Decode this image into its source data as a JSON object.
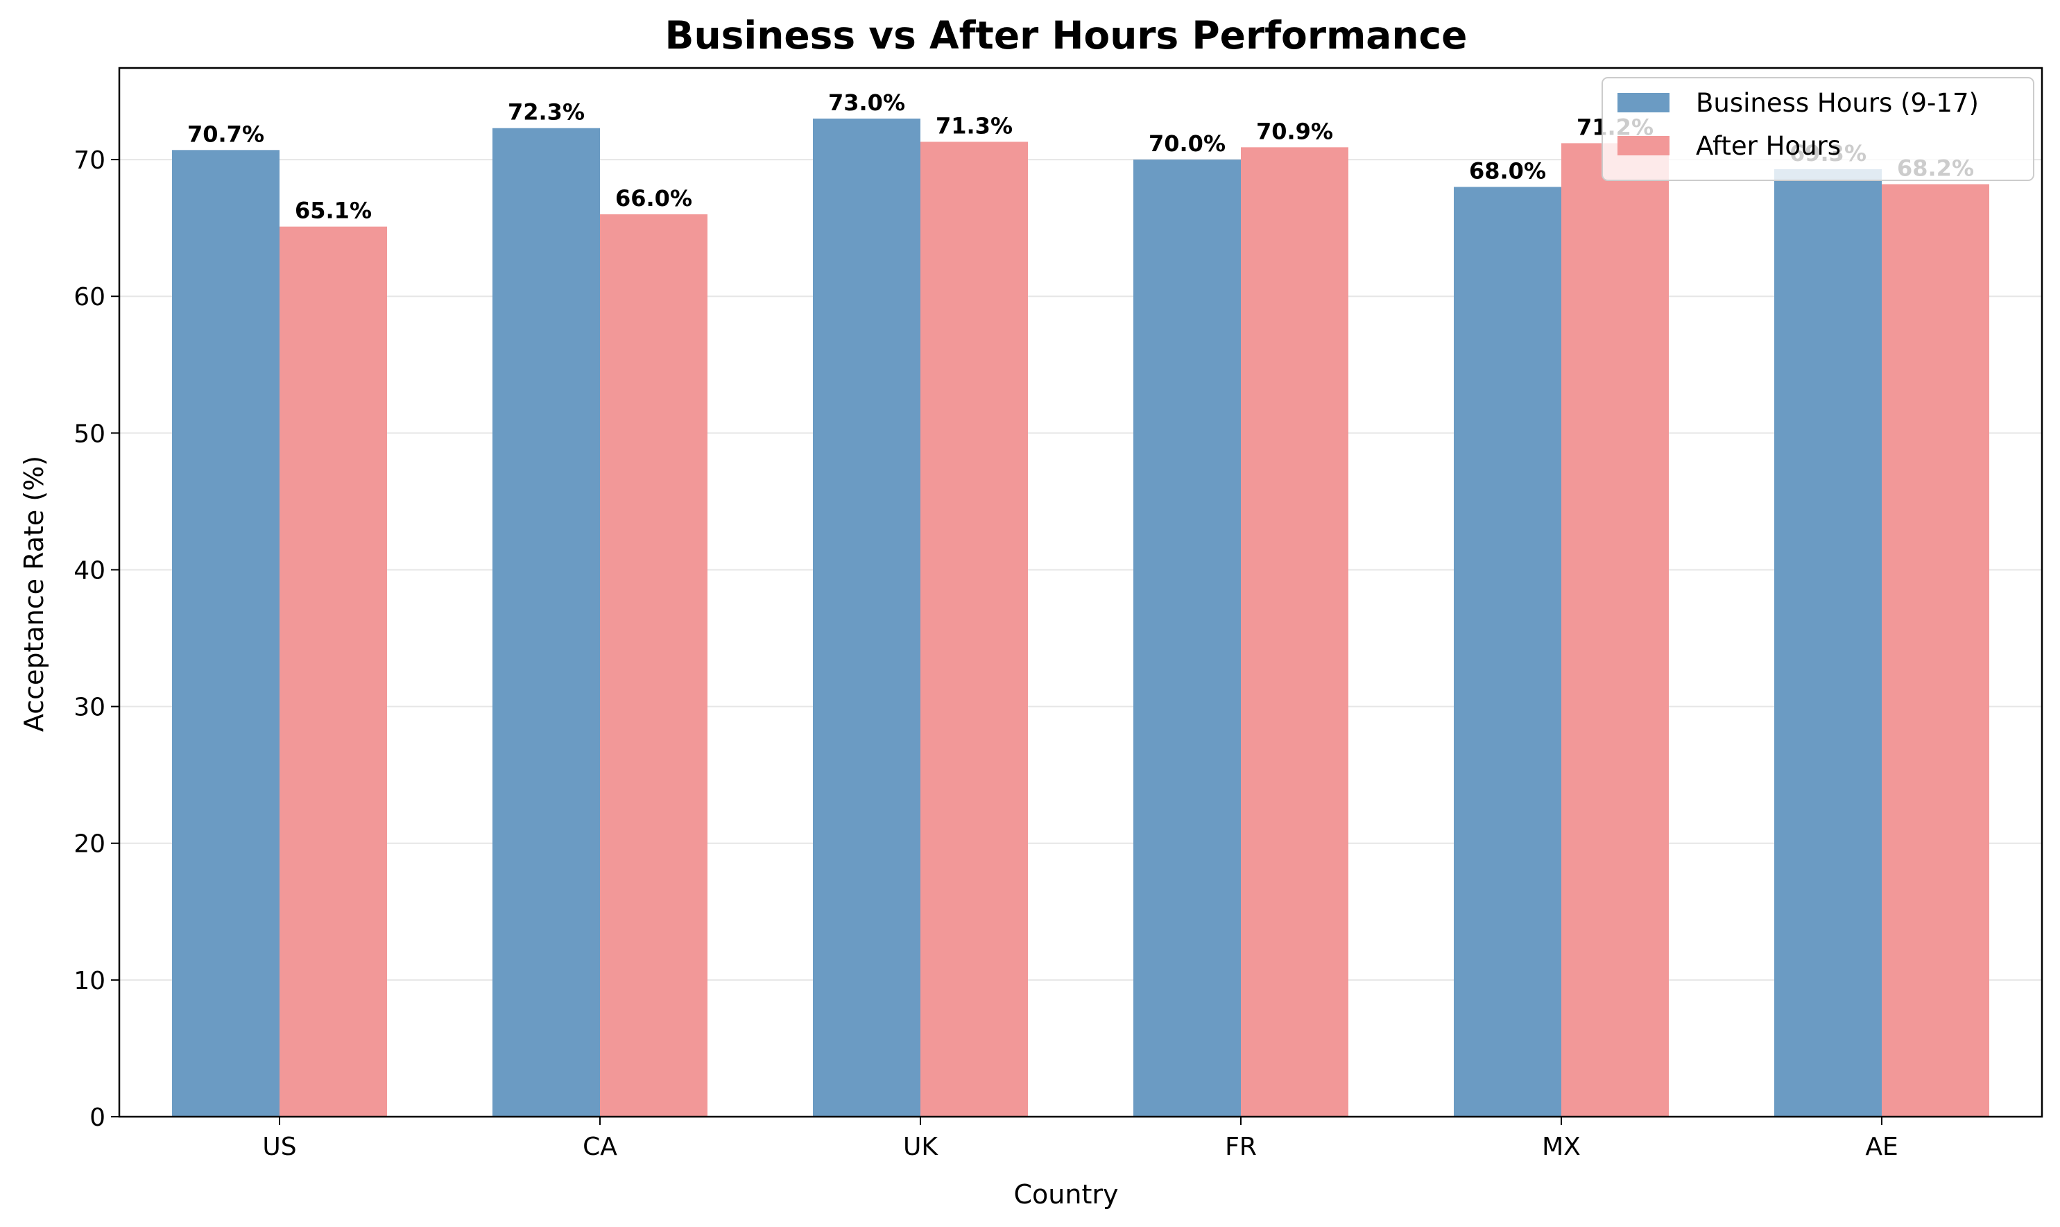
{
  "chart_data": {
    "type": "bar",
    "title": "Business vs After Hours Performance",
    "xlabel": "Country",
    "ylabel": "Acceptance Rate (%)",
    "categories": [
      "US",
      "CA",
      "UK",
      "FR",
      "MX",
      "AE"
    ],
    "ylim": [
      0,
      76.7
    ],
    "yticks": [
      0,
      10,
      20,
      30,
      40,
      50,
      60,
      70
    ],
    "grid": "horizontal",
    "legend_position": "top-right",
    "series": [
      {
        "name": "Business Hours (9-17)",
        "color": "#6b9bc3",
        "values": [
          70.7,
          72.3,
          73.0,
          70.0,
          68.0,
          69.3
        ],
        "labels": [
          "70.7%",
          "72.3%",
          "73.0%",
          "70.0%",
          "68.0%",
          "69.3%"
        ]
      },
      {
        "name": "After Hours",
        "color": "#f29898",
        "values": [
          65.1,
          66.0,
          71.3,
          70.9,
          71.2,
          68.2
        ],
        "labels": [
          "65.1%",
          "66.0%",
          "71.3%",
          "70.9%",
          "71.2%",
          "68.2%"
        ]
      }
    ]
  }
}
